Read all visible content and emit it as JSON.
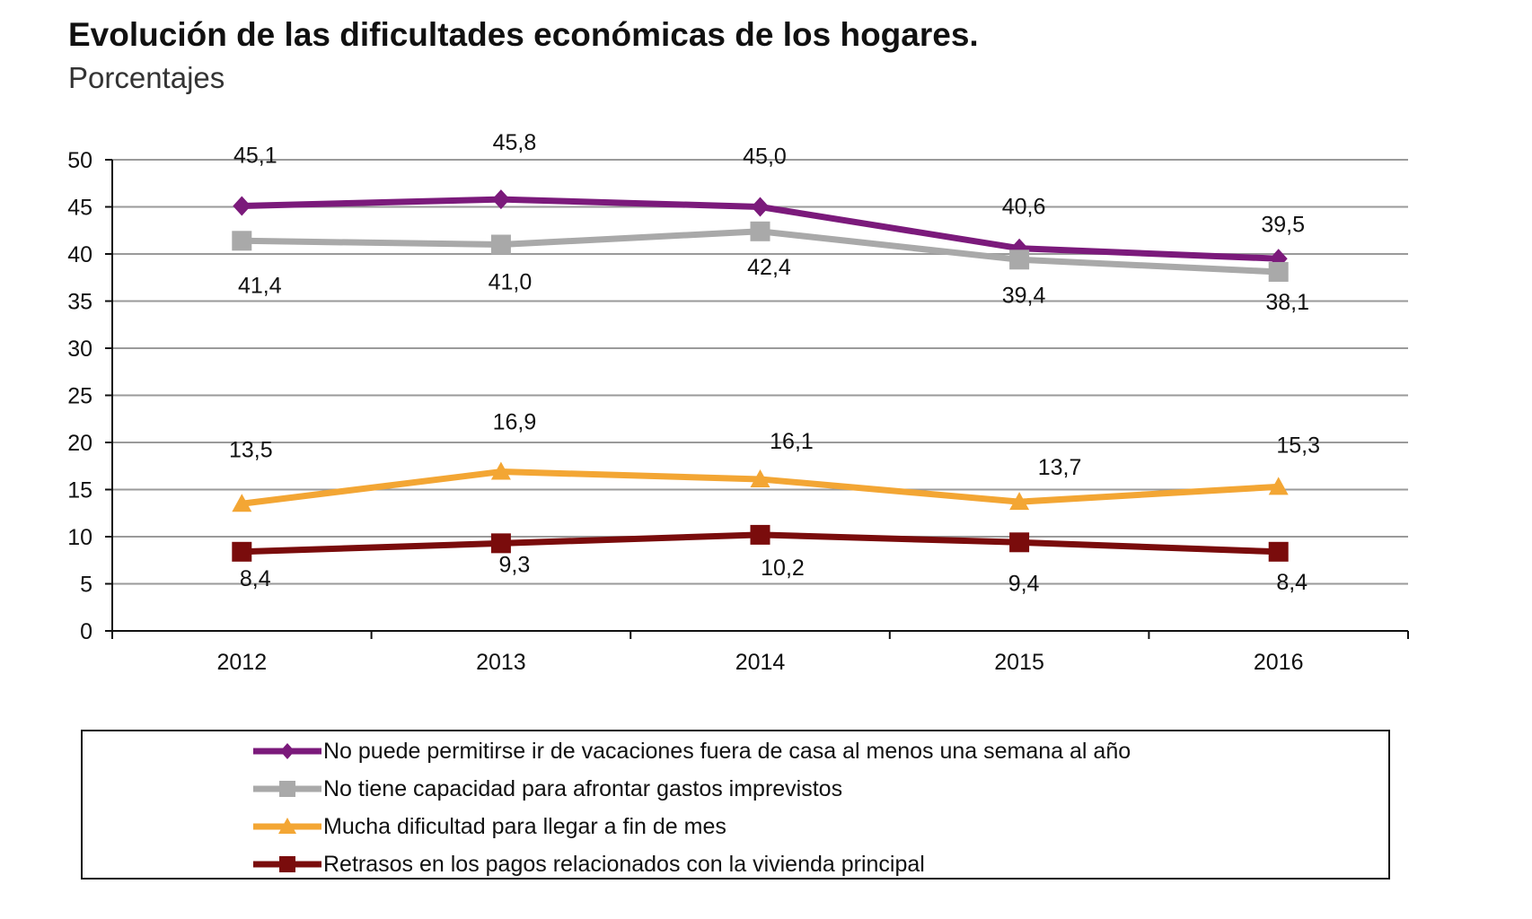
{
  "chart_data": {
    "type": "line",
    "title": "Evolución de las dificultades económicas de los hogares.",
    "subtitle": "Porcentajes",
    "categories": [
      "2012",
      "2013",
      "2014",
      "2015",
      "2016"
    ],
    "ylim": [
      0,
      50
    ],
    "yticks": [
      0,
      5,
      10,
      15,
      20,
      25,
      30,
      35,
      40,
      45,
      50
    ],
    "grid": true,
    "legend_position": "bottom",
    "series": [
      {
        "name": "No puede permitirse ir de vacaciones fuera de casa al menos una semana al año",
        "values": [
          45.1,
          45.8,
          45.0,
          40.6,
          39.5
        ],
        "labels": [
          "45,1",
          "45,8",
          "45,0",
          "40,6",
          "39,5"
        ],
        "color": "#7b1a7b",
        "marker": "diamond"
      },
      {
        "name": "No tiene capacidad para afrontar gastos imprevistos",
        "values": [
          41.4,
          41.0,
          42.4,
          39.4,
          38.1
        ],
        "labels": [
          "41,4",
          "41,0",
          "42,4",
          "39,4",
          "38,1"
        ],
        "color": "#a9a9a9",
        "marker": "square"
      },
      {
        "name": "Mucha dificultad para llegar a fin de mes",
        "values": [
          13.5,
          16.9,
          16.1,
          13.7,
          15.3
        ],
        "labels": [
          "13,5",
          "16,9",
          "16,1",
          "13,7",
          "15,3"
        ],
        "color": "#f3a634",
        "marker": "triangle"
      },
      {
        "name": "Retrasos en los pagos relacionados con la vivienda principal",
        "values": [
          8.4,
          9.3,
          10.2,
          9.4,
          8.4
        ],
        "labels": [
          "8,4",
          "9,3",
          "10,2",
          "9,4",
          "8,4"
        ],
        "color": "#7a0c0c",
        "marker": "square"
      }
    ]
  }
}
